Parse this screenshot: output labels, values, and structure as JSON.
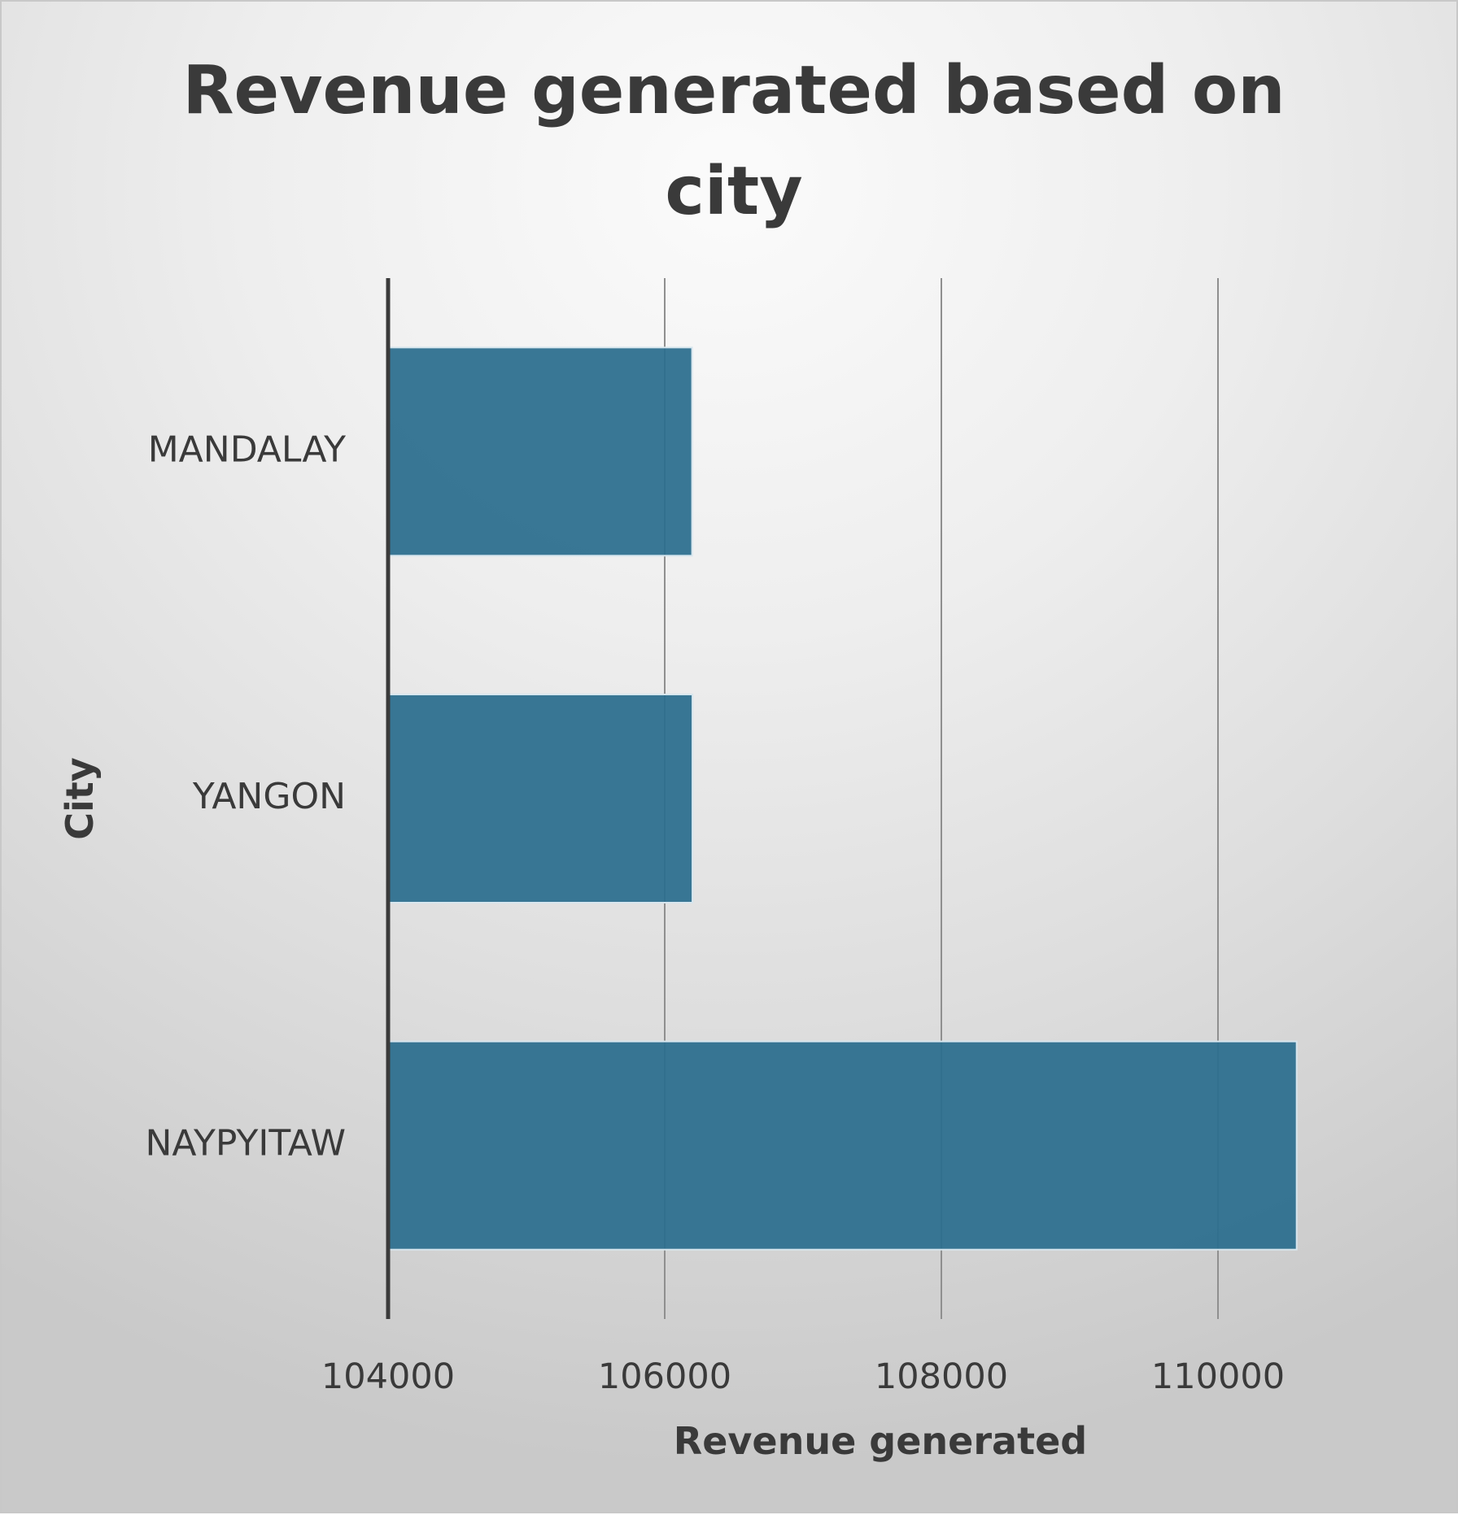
{
  "chart_data": {
    "type": "bar",
    "orientation": "horizontal",
    "title": "Revenue generated based on city",
    "xlabel": "Revenue generated",
    "ylabel": "City",
    "categories": [
      "MANDALAY",
      "YANGON",
      "NAYPYITAW"
    ],
    "values": [
      106197.67,
      106200.37,
      110568.71
    ],
    "xlim": [
      104000,
      111000
    ],
    "xticks": [
      104000,
      106000,
      108000,
      110000
    ],
    "grid": true,
    "legend": "none",
    "bar_color": "#2d6f8e",
    "axis_color": "#3a3a3a",
    "grid_color": "#8f8f8f"
  }
}
